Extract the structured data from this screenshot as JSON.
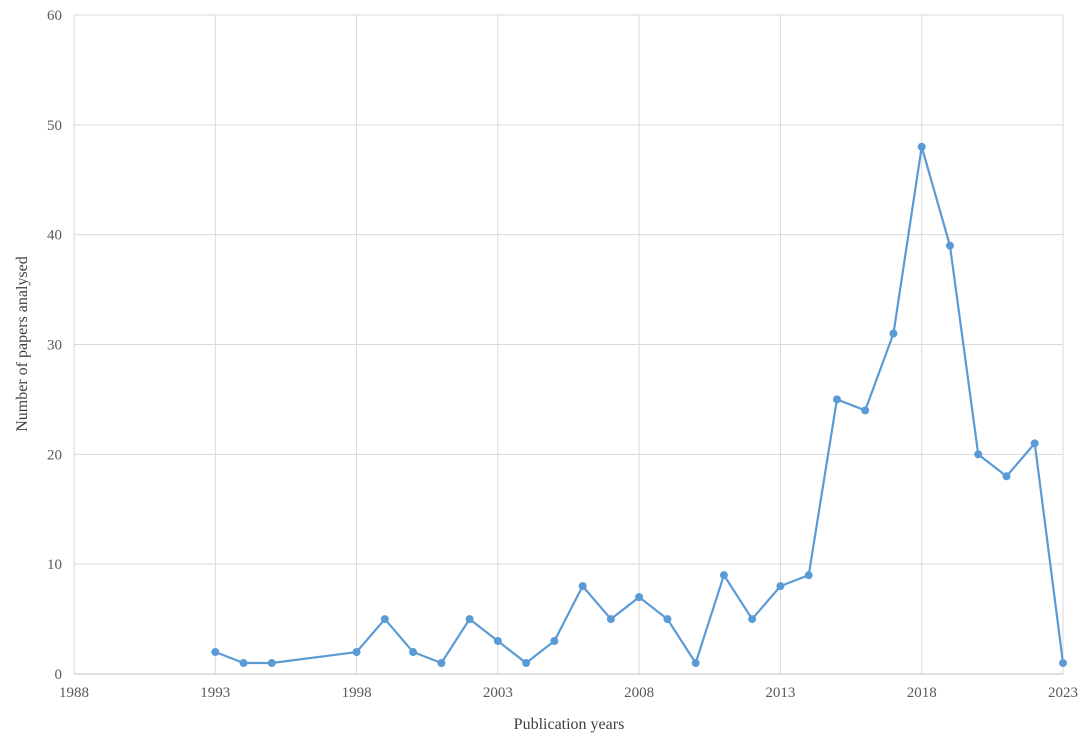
{
  "chart_data": {
    "type": "line",
    "title": "",
    "xlabel": "Publication  years",
    "ylabel": "Number of papers analysed",
    "xlim": [
      1988,
      2023
    ],
    "ylim": [
      0,
      60
    ],
    "x_ticks": [
      1988,
      1993,
      1998,
      2003,
      2008,
      2013,
      2018,
      2023
    ],
    "y_ticks": [
      0,
      10,
      20,
      30,
      40,
      50,
      60
    ],
    "grid": true,
    "legend": "none",
    "series": [
      {
        "color": "#5b9bd5",
        "x": [
          1993,
          1994,
          1995,
          1998,
          1999,
          2000,
          2001,
          2002,
          2003,
          2004,
          2005,
          2006,
          2007,
          2008,
          2009,
          2010,
          2011,
          2012,
          2013,
          2014,
          2015,
          2016,
          2017,
          2018,
          2019,
          2020,
          2021,
          2022,
          2023
        ],
        "values": [
          2,
          1,
          1,
          2,
          5,
          2,
          1,
          5,
          3,
          1,
          3,
          8,
          5,
          7,
          5,
          1,
          9,
          5,
          8,
          9,
          25,
          24,
          31,
          48,
          39,
          20,
          18,
          21,
          1
        ]
      }
    ]
  }
}
